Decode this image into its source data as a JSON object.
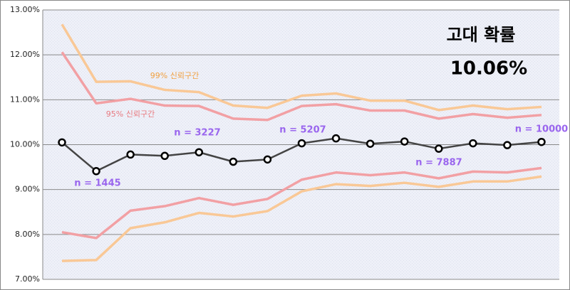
{
  "chart_data": {
    "type": "line",
    "categories": [
      null,
      null,
      null,
      null,
      null,
      null,
      null,
      null,
      null,
      null,
      null,
      null,
      null,
      null,
      null
    ],
    "series": [
      {
        "color": "#f9c896",
        "values": [
          12.68,
          11.4,
          11.41,
          11.22,
          11.17,
          10.87,
          10.82,
          11.09,
          11.14,
          10.98,
          10.98,
          10.77,
          10.87,
          10.79,
          10.84
        ]
      },
      {
        "color": "#f9c896",
        "values": [
          7.41,
          7.43,
          8.14,
          8.27,
          8.48,
          8.4,
          8.52,
          8.96,
          9.12,
          9.08,
          9.15,
          9.06,
          9.18,
          9.18,
          9.29
        ]
      },
      {
        "color": "#f2a0a4",
        "values": [
          12.06,
          10.92,
          11.02,
          10.87,
          10.86,
          10.58,
          10.55,
          10.86,
          10.9,
          10.76,
          10.76,
          10.58,
          10.68,
          10.6,
          10.66
        ]
      },
      {
        "color": "#f2a0a4",
        "values": [
          8.05,
          7.92,
          8.53,
          8.63,
          8.81,
          8.66,
          8.79,
          9.22,
          9.38,
          9.32,
          9.38,
          9.25,
          9.4,
          9.38,
          9.48
        ]
      },
      {
        "color": "#444444",
        "markers": true,
        "values": [
          10.05,
          9.41,
          9.78,
          9.75,
          9.83,
          9.62,
          9.67,
          10.03,
          10.14,
          10.02,
          10.07,
          9.91,
          10.03,
          9.99,
          10.06
        ]
      }
    ],
    "ylim": [
      7,
      13
    ],
    "yticks": [
      {
        "value": 7,
        "label": "7.00%"
      },
      {
        "value": 8,
        "label": "8.00%"
      },
      {
        "value": 9,
        "label": "9.00%"
      },
      {
        "value": 10,
        "label": "10.00%"
      },
      {
        "value": 11,
        "label": "11.00%"
      },
      {
        "value": 12,
        "label": "12.00%"
      },
      {
        "value": 13,
        "label": "13.00%"
      }
    ],
    "grid": true,
    "annotations": [
      "99% 신뢰구간",
      "95% 신뢰구간",
      "n = 1445",
      "n = 3227",
      "n = 5207",
      "n = 7887",
      "n = 10000",
      "고대 확률",
      "10.06%"
    ]
  }
}
